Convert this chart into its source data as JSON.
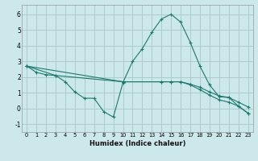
{
  "xlabel": "Humidex (Indice chaleur)",
  "bg_color": "#cce8ea",
  "grid_color": "#aacccc",
  "line_color": "#1a7a6e",
  "xlim": [
    -0.5,
    23.5
  ],
  "ylim": [
    -1.5,
    6.6
  ],
  "xticks": [
    0,
    1,
    2,
    3,
    4,
    5,
    6,
    7,
    8,
    9,
    10,
    11,
    12,
    13,
    14,
    15,
    16,
    17,
    18,
    19,
    20,
    21,
    22,
    23
  ],
  "yticks": [
    -1,
    0,
    1,
    2,
    3,
    4,
    5,
    6
  ],
  "line1_x": [
    0,
    1,
    2,
    3,
    4,
    5,
    6,
    7,
    8,
    9,
    10,
    11,
    12,
    13,
    14,
    15,
    16,
    17,
    18,
    19,
    20,
    21,
    22,
    23
  ],
  "line1_y": [
    2.7,
    2.3,
    2.15,
    2.1,
    1.7,
    1.05,
    0.65,
    0.65,
    -0.2,
    -0.55,
    1.65,
    3.0,
    3.8,
    4.85,
    5.7,
    6.0,
    5.5,
    4.2,
    2.7,
    1.5,
    0.75,
    0.7,
    0.15,
    -0.3
  ],
  "line2_x": [
    0,
    3,
    10,
    14,
    15,
    16,
    17,
    18,
    19,
    20,
    21,
    22,
    23
  ],
  "line2_y": [
    2.7,
    2.1,
    1.7,
    1.7,
    1.7,
    1.7,
    1.55,
    1.35,
    1.05,
    0.8,
    0.7,
    0.4,
    0.1
  ],
  "line3_x": [
    0,
    10,
    14,
    15,
    16,
    17,
    18,
    19,
    20,
    21,
    22,
    23
  ],
  "line3_y": [
    2.7,
    1.7,
    1.7,
    1.7,
    1.7,
    1.5,
    1.2,
    0.85,
    0.55,
    0.4,
    0.15,
    -0.3
  ]
}
